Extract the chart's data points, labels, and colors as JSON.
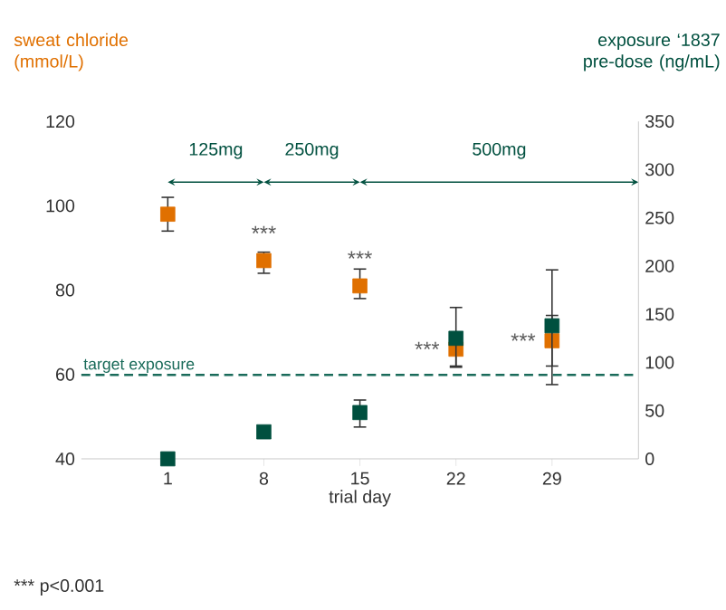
{
  "chart_data": {
    "type": "scatter",
    "xlabel": "trial day",
    "ylabel": "sweat chloride (mmol/L)",
    "y2label": "exposure ‘1837 pre-dose (ng/mL)",
    "x": [
      1,
      8,
      15,
      22,
      29
    ],
    "xlim": [
      -5.3,
      35.3
    ],
    "xticks": [
      1,
      8,
      15,
      22,
      29
    ],
    "ylim": [
      40,
      120
    ],
    "yticks": [
      40,
      60,
      80,
      100,
      120
    ],
    "y2lim": [
      0,
      350
    ],
    "y2ticks": [
      0,
      50,
      100,
      150,
      200,
      250,
      300,
      350
    ],
    "marker": "square",
    "series": [
      {
        "color": "#e07000",
        "values": [
          98,
          87,
          81,
          66,
          68
        ],
        "errors": [
          [
            94,
            102
          ],
          [
            84,
            89
          ],
          [
            78,
            85
          ],
          [
            62,
            69
          ],
          [
            62,
            74
          ]
        ]
      },
      {
        "color": "#00503f",
        "axis": "y2",
        "values": [
          0,
          28,
          48,
          125,
          138
        ],
        "errors": [
          null,
          null,
          [
            33,
            61
          ],
          [
            95,
            157
          ],
          [
            77,
            196
          ]
        ]
      }
    ],
    "ref_lines": [
      {
        "axis": "y2",
        "value": 87,
        "label": "target exposure",
        "color": "#1a6b5a",
        "line_style": "dashed"
      }
    ],
    "annotations": [
      "125mg",
      "250mg",
      "500mg",
      {
        "text": "***",
        "x": 8,
        "y": 87
      },
      {
        "text": "***",
        "x": 15,
        "y": 81
      },
      {
        "text": "***",
        "x": 22,
        "y": 66
      },
      {
        "text": "***",
        "x": 29,
        "y": 68
      },
      "*** p<0.001"
    ]
  }
}
